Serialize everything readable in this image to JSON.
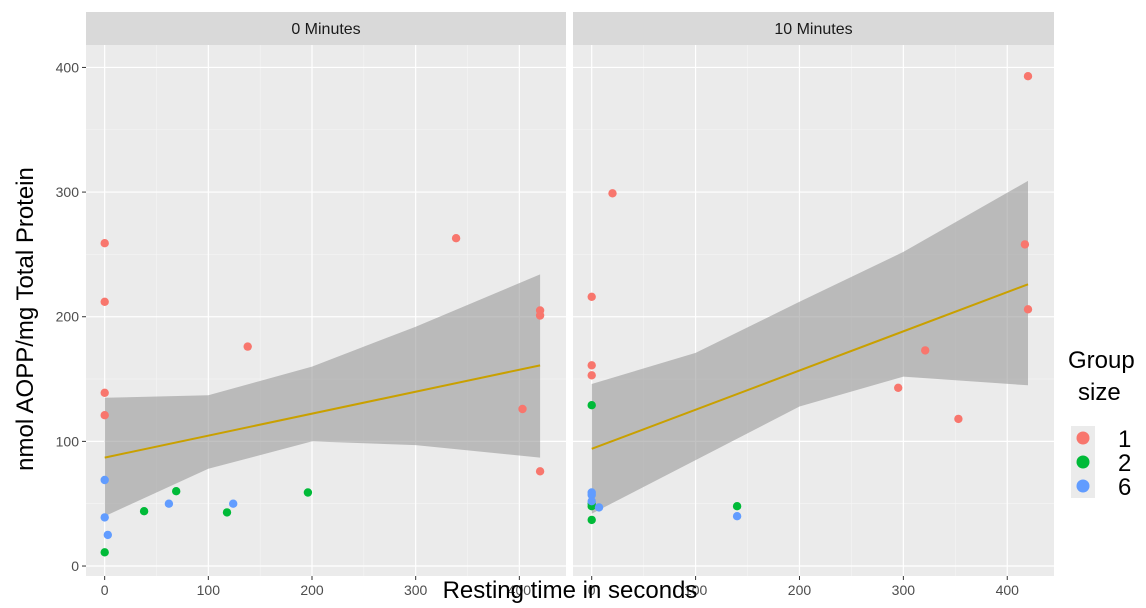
{
  "chart_data": {
    "type": "scatter",
    "xlabel": "Resting time in seconds",
    "ylabel": "nmol AOPP/mg Total Protein",
    "xlim": [
      -18,
      445
    ],
    "ylim": [
      -8,
      418
    ],
    "x_ticks": [
      0,
      100,
      200,
      300,
      400
    ],
    "y_ticks": [
      0,
      100,
      200,
      300,
      400
    ],
    "grid": true,
    "legend": {
      "title_lines": [
        "Group",
        "size"
      ],
      "placement": "right",
      "items": [
        {
          "label": "1",
          "color": "#F8766D"
        },
        {
          "label": "2",
          "color": "#00BA38"
        },
        {
          "label": "6",
          "color": "#619CFF"
        }
      ]
    },
    "fit_line_color": "#C9A000",
    "ribbon_color": "#999999",
    "panels": [
      {
        "title": "0 Minutes",
        "fit_line": {
          "x": [
            0,
            420
          ],
          "y": [
            87,
            161
          ]
        },
        "confidence_band": {
          "x": [
            0,
            100,
            200,
            300,
            420
          ],
          "lower": [
            40,
            78,
            100,
            97,
            87
          ],
          "upper": [
            135,
            137,
            160,
            192,
            234
          ]
        },
        "series": [
          {
            "name": "1",
            "points": [
              [
                0,
                259
              ],
              [
                0,
                212
              ],
              [
                0,
                139
              ],
              [
                0,
                121
              ],
              [
                138,
                176
              ],
              [
                339,
                263
              ],
              [
                420,
                205
              ],
              [
                420,
                201
              ],
              [
                403,
                126
              ],
              [
                420,
                76
              ]
            ]
          },
          {
            "name": "2",
            "points": [
              [
                0,
                11
              ],
              [
                38,
                44
              ],
              [
                69,
                60
              ],
              [
                118,
                43
              ],
              [
                196,
                59
              ]
            ]
          },
          {
            "name": "6",
            "points": [
              [
                0,
                69
              ],
              [
                0,
                39
              ],
              [
                3,
                25
              ],
              [
                62,
                50
              ],
              [
                124,
                50
              ]
            ]
          }
        ]
      },
      {
        "title": "10 Minutes",
        "fit_line": {
          "x": [
            0,
            420
          ],
          "y": [
            94,
            226
          ]
        },
        "confidence_band": {
          "x": [
            0,
            100,
            200,
            300,
            420
          ],
          "lower": [
            42,
            85,
            128,
            152,
            145
          ],
          "upper": [
            146,
            171,
            212,
            252,
            309
          ]
        },
        "series": [
          {
            "name": "1",
            "points": [
              [
                0,
                216
              ],
              [
                0,
                161
              ],
              [
                0,
                153
              ],
              [
                20,
                299
              ],
              [
                295,
                143
              ],
              [
                321,
                173
              ],
              [
                353,
                118
              ],
              [
                417,
                258
              ],
              [
                420,
                393
              ],
              [
                420,
                206
              ]
            ]
          },
          {
            "name": "2",
            "points": [
              [
                0,
                129
              ],
              [
                0,
                50
              ],
              [
                0,
                48
              ],
              [
                0,
                37
              ],
              [
                140,
                48
              ]
            ]
          },
          {
            "name": "6",
            "points": [
              [
                0,
                59
              ],
              [
                0,
                57
              ],
              [
                0,
                52
              ],
              [
                7,
                47
              ],
              [
                140,
                40
              ]
            ]
          }
        ]
      }
    ]
  }
}
